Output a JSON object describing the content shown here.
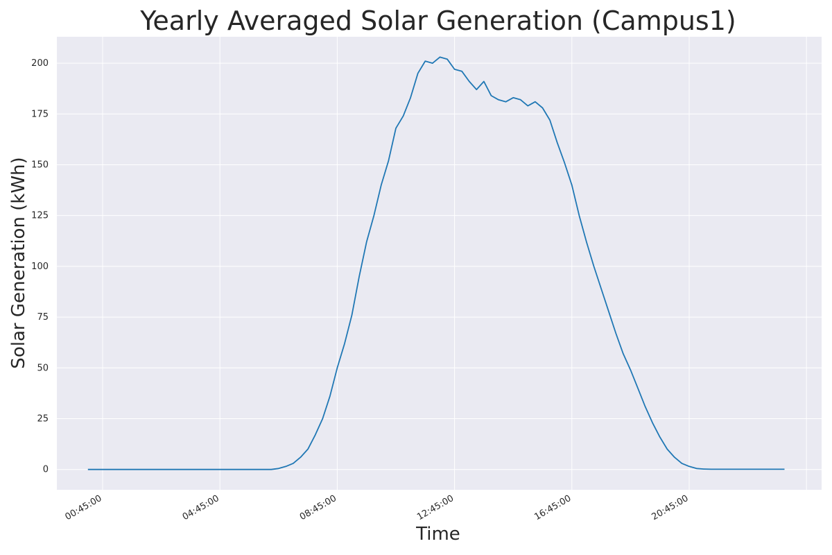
{
  "chart_data": {
    "type": "line",
    "title": "Yearly Averaged Solar Generation (Campus1)",
    "xlabel": "Time",
    "ylabel": "Solar Generation (kWh)",
    "x_tick_labels": [
      "00:45:00",
      "04:45:00",
      "08:45:00",
      "12:45:00",
      "16:45:00",
      "20:45:00"
    ],
    "y_ticks": [
      0,
      25,
      50,
      75,
      100,
      125,
      150,
      175,
      200
    ],
    "ylim": [
      -10,
      213
    ],
    "grid": true,
    "background": "#eaeaf2",
    "series": [
      {
        "color": "#1f77b4",
        "x": [
          "00:15",
          "00:30",
          "00:45",
          "01:00",
          "01:15",
          "01:30",
          "01:45",
          "02:00",
          "02:15",
          "02:30",
          "02:45",
          "03:00",
          "03:15",
          "03:30",
          "03:45",
          "04:00",
          "04:15",
          "04:30",
          "04:45",
          "05:00",
          "05:15",
          "05:30",
          "05:45",
          "06:00",
          "06:15",
          "06:30",
          "06:45",
          "07:00",
          "07:15",
          "07:30",
          "07:45",
          "08:00",
          "08:15",
          "08:30",
          "08:45",
          "09:00",
          "09:15",
          "09:30",
          "09:45",
          "10:00",
          "10:15",
          "10:30",
          "10:45",
          "11:00",
          "11:15",
          "11:30",
          "11:45",
          "12:00",
          "12:15",
          "12:30",
          "12:45",
          "13:00",
          "13:15",
          "13:30",
          "13:45",
          "14:00",
          "14:15",
          "14:30",
          "14:45",
          "15:00",
          "15:15",
          "15:30",
          "15:45",
          "16:00",
          "16:15",
          "16:30",
          "16:45",
          "17:00",
          "17:15",
          "17:30",
          "17:45",
          "18:00",
          "18:15",
          "18:30",
          "18:45",
          "19:00",
          "19:15",
          "19:30",
          "19:45",
          "20:00",
          "20:15",
          "20:30",
          "20:45",
          "21:00",
          "21:15",
          "21:30",
          "21:45",
          "22:00",
          "22:15",
          "22:30",
          "22:45",
          "23:00",
          "23:15",
          "23:30",
          "23:45",
          "24:00"
        ],
        "values": [
          0.0,
          0.0,
          0.0,
          0.0,
          0.0,
          0.0,
          0.0,
          0.0,
          0.0,
          0.0,
          0.0,
          0.0,
          0.0,
          0.0,
          0.0,
          0.0,
          0.0,
          0.0,
          0.0,
          0.0,
          0.0,
          0.0,
          0.0,
          0.0,
          0.0,
          0.0,
          0.5,
          1.5,
          3,
          6,
          10,
          17,
          25,
          36,
          50,
          62,
          76,
          95,
          112,
          125,
          140,
          152,
          168,
          174,
          183,
          195,
          201,
          200,
          203,
          202,
          197,
          196,
          191,
          187,
          191,
          184,
          182,
          181,
          183,
          182,
          179,
          181,
          178,
          172,
          161,
          151,
          140,
          125,
          112,
          100,
          89,
          78,
          67,
          57,
          49,
          40,
          31,
          23,
          16,
          10,
          6,
          3,
          1.5,
          0.5,
          0.2,
          0.1,
          0.1,
          0.1,
          0.1,
          0.1,
          0.1,
          0.1,
          0.1,
          0.1,
          0.1,
          0.1
        ]
      }
    ]
  }
}
